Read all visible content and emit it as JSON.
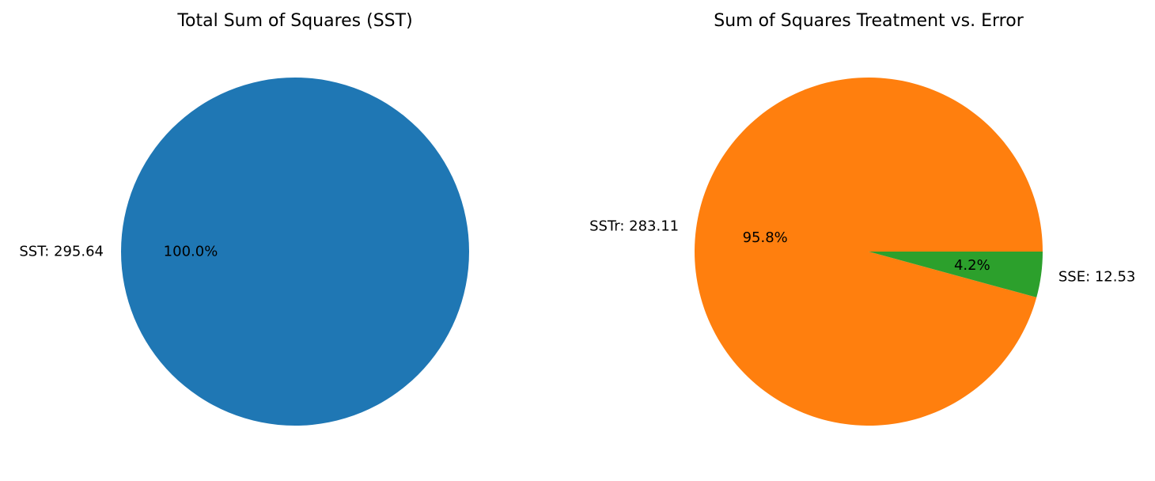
{
  "chart_data": [
    {
      "type": "pie",
      "title": "Total Sum of Squares (SST)",
      "categories": [
        "SST"
      ],
      "values": [
        295.64
      ],
      "slice_labels": [
        "SST: 295.64"
      ],
      "percent_labels": [
        "100.0%"
      ],
      "colors": [
        "#1f77b4"
      ],
      "start_angle_deg": 0,
      "direction": "counterclockwise"
    },
    {
      "type": "pie",
      "title": "Sum of Squares Treatment vs. Error",
      "categories": [
        "SSTr",
        "SSE"
      ],
      "values": [
        283.11,
        12.53
      ],
      "slice_labels": [
        "SSTr: 283.11",
        "SSE: 12.53"
      ],
      "percent_labels": [
        "95.8%",
        "4.2%"
      ],
      "colors": [
        "#ff7f0e",
        "#2ca02c"
      ],
      "start_angle_deg": 0,
      "direction": "counterclockwise"
    }
  ]
}
